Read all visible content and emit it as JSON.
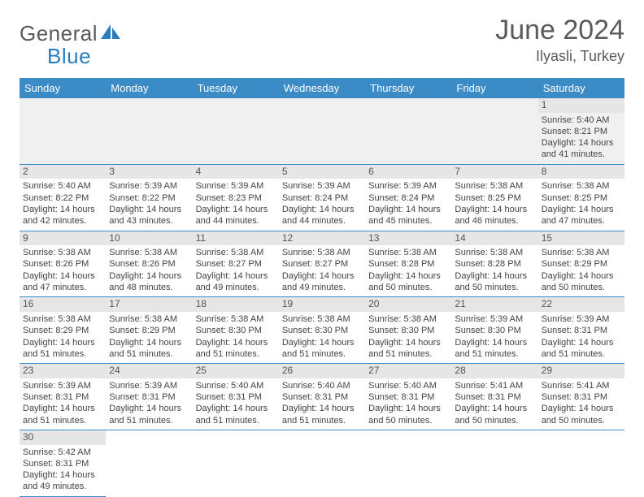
{
  "logo": {
    "text1": "General",
    "text2": "Blue"
  },
  "title": "June 2024",
  "location": "Ilyasli, Turkey",
  "colors": {
    "header_bg": "#3b8bc7",
    "header_fg": "#ffffff",
    "daynum_bg": "#e6e6e6",
    "border": "#3b8bc7",
    "text": "#444444",
    "logo_gray": "#5a5a5a",
    "logo_blue": "#2b7bbf"
  },
  "weekdays": [
    "Sunday",
    "Monday",
    "Tuesday",
    "Wednesday",
    "Thursday",
    "Friday",
    "Saturday"
  ],
  "grid": {
    "first_weekday_index": 6,
    "days_in_month": 30
  },
  "days": {
    "1": {
      "sunrise": "5:40 AM",
      "sunset": "8:21 PM",
      "daylight": "14 hours and 41 minutes."
    },
    "2": {
      "sunrise": "5:40 AM",
      "sunset": "8:22 PM",
      "daylight": "14 hours and 42 minutes."
    },
    "3": {
      "sunrise": "5:39 AM",
      "sunset": "8:22 PM",
      "daylight": "14 hours and 43 minutes."
    },
    "4": {
      "sunrise": "5:39 AM",
      "sunset": "8:23 PM",
      "daylight": "14 hours and 44 minutes."
    },
    "5": {
      "sunrise": "5:39 AM",
      "sunset": "8:24 PM",
      "daylight": "14 hours and 44 minutes."
    },
    "6": {
      "sunrise": "5:39 AM",
      "sunset": "8:24 PM",
      "daylight": "14 hours and 45 minutes."
    },
    "7": {
      "sunrise": "5:38 AM",
      "sunset": "8:25 PM",
      "daylight": "14 hours and 46 minutes."
    },
    "8": {
      "sunrise": "5:38 AM",
      "sunset": "8:25 PM",
      "daylight": "14 hours and 47 minutes."
    },
    "9": {
      "sunrise": "5:38 AM",
      "sunset": "8:26 PM",
      "daylight": "14 hours and 47 minutes."
    },
    "10": {
      "sunrise": "5:38 AM",
      "sunset": "8:26 PM",
      "daylight": "14 hours and 48 minutes."
    },
    "11": {
      "sunrise": "5:38 AM",
      "sunset": "8:27 PM",
      "daylight": "14 hours and 49 minutes."
    },
    "12": {
      "sunrise": "5:38 AM",
      "sunset": "8:27 PM",
      "daylight": "14 hours and 49 minutes."
    },
    "13": {
      "sunrise": "5:38 AM",
      "sunset": "8:28 PM",
      "daylight": "14 hours and 50 minutes."
    },
    "14": {
      "sunrise": "5:38 AM",
      "sunset": "8:28 PM",
      "daylight": "14 hours and 50 minutes."
    },
    "15": {
      "sunrise": "5:38 AM",
      "sunset": "8:29 PM",
      "daylight": "14 hours and 50 minutes."
    },
    "16": {
      "sunrise": "5:38 AM",
      "sunset": "8:29 PM",
      "daylight": "14 hours and 51 minutes."
    },
    "17": {
      "sunrise": "5:38 AM",
      "sunset": "8:29 PM",
      "daylight": "14 hours and 51 minutes."
    },
    "18": {
      "sunrise": "5:38 AM",
      "sunset": "8:30 PM",
      "daylight": "14 hours and 51 minutes."
    },
    "19": {
      "sunrise": "5:38 AM",
      "sunset": "8:30 PM",
      "daylight": "14 hours and 51 minutes."
    },
    "20": {
      "sunrise": "5:38 AM",
      "sunset": "8:30 PM",
      "daylight": "14 hours and 51 minutes."
    },
    "21": {
      "sunrise": "5:39 AM",
      "sunset": "8:30 PM",
      "daylight": "14 hours and 51 minutes."
    },
    "22": {
      "sunrise": "5:39 AM",
      "sunset": "8:31 PM",
      "daylight": "14 hours and 51 minutes."
    },
    "23": {
      "sunrise": "5:39 AM",
      "sunset": "8:31 PM",
      "daylight": "14 hours and 51 minutes."
    },
    "24": {
      "sunrise": "5:39 AM",
      "sunset": "8:31 PM",
      "daylight": "14 hours and 51 minutes."
    },
    "25": {
      "sunrise": "5:40 AM",
      "sunset": "8:31 PM",
      "daylight": "14 hours and 51 minutes."
    },
    "26": {
      "sunrise": "5:40 AM",
      "sunset": "8:31 PM",
      "daylight": "14 hours and 51 minutes."
    },
    "27": {
      "sunrise": "5:40 AM",
      "sunset": "8:31 PM",
      "daylight": "14 hours and 50 minutes."
    },
    "28": {
      "sunrise": "5:41 AM",
      "sunset": "8:31 PM",
      "daylight": "14 hours and 50 minutes."
    },
    "29": {
      "sunrise": "5:41 AM",
      "sunset": "8:31 PM",
      "daylight": "14 hours and 50 minutes."
    },
    "30": {
      "sunrise": "5:42 AM",
      "sunset": "8:31 PM",
      "daylight": "14 hours and 49 minutes."
    }
  },
  "labels": {
    "sunrise": "Sunrise:",
    "sunset": "Sunset:",
    "daylight": "Daylight:"
  }
}
